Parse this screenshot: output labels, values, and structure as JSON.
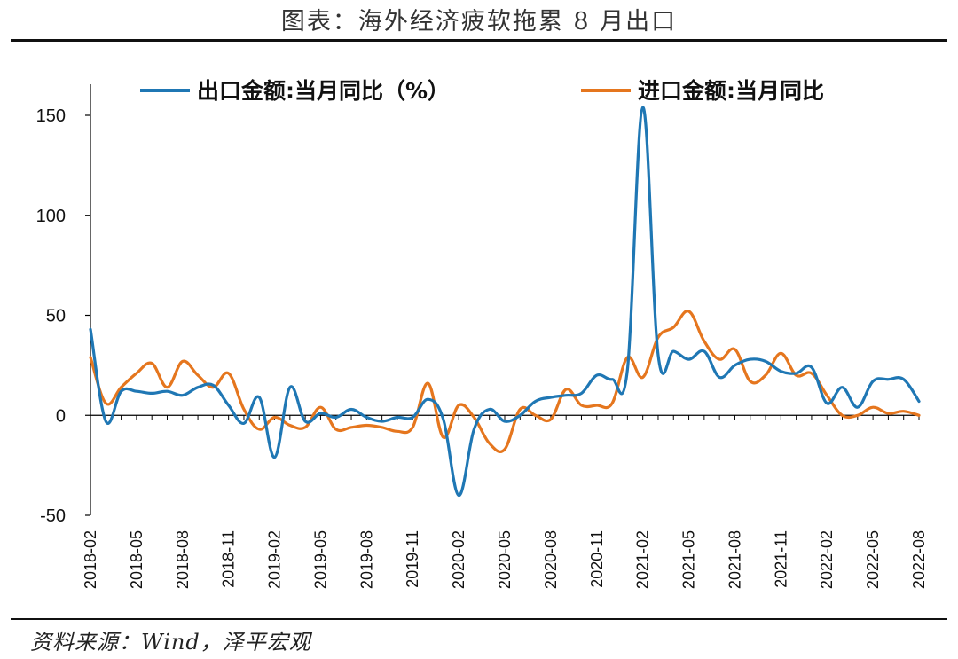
{
  "title": "图表：海外经济疲软拖累 8 月出口",
  "source": "资料来源：Wind，泽平宏观",
  "chart_data": {
    "type": "line",
    "legend_position": "top",
    "grid": false,
    "ylim": [
      -50,
      160
    ],
    "yticks": [
      -50,
      0,
      50,
      100,
      150
    ],
    "x_tick_labels": [
      "2018-02",
      "2018-05",
      "2018-08",
      "2018-11",
      "2019-02",
      "2019-05",
      "2019-08",
      "2019-11",
      "2020-02",
      "2020-05",
      "2020-08",
      "2020-11",
      "2021-02",
      "2021-05",
      "2021-08",
      "2021-11",
      "2022-02",
      "2022-05",
      "2022-08"
    ],
    "x": [
      "2018-02",
      "2018-03",
      "2018-04",
      "2018-05",
      "2018-06",
      "2018-07",
      "2018-08",
      "2018-09",
      "2018-10",
      "2018-11",
      "2018-12",
      "2019-01",
      "2019-02",
      "2019-03",
      "2019-04",
      "2019-05",
      "2019-06",
      "2019-07",
      "2019-08",
      "2019-09",
      "2019-10",
      "2019-11",
      "2019-12",
      "2020-01",
      "2020-02",
      "2020-03",
      "2020-04",
      "2020-05",
      "2020-06",
      "2020-07",
      "2020-08",
      "2020-09",
      "2020-10",
      "2020-11",
      "2020-12",
      "2021-01",
      "2021-02",
      "2021-03",
      "2021-04",
      "2021-05",
      "2021-06",
      "2021-07",
      "2021-08",
      "2021-09",
      "2021-10",
      "2021-11",
      "2021-12",
      "2022-01",
      "2022-02",
      "2022-03",
      "2022-04",
      "2022-05",
      "2022-06",
      "2022-07",
      "2022-08"
    ],
    "series": [
      {
        "name": "出口金额:当月同比（%）",
        "color": "#1F77B4",
        "values": [
          43,
          -3,
          12,
          12,
          11,
          12,
          10,
          14,
          15,
          5,
          -4,
          9,
          -21,
          14,
          -3,
          1,
          -1,
          3,
          -1,
          -3,
          -1,
          -1,
          8,
          -2,
          -40,
          -7,
          3,
          -3,
          0,
          7,
          9,
          10,
          11,
          20,
          18,
          23,
          154,
          30,
          32,
          28,
          32,
          19,
          25,
          28,
          27,
          22,
          21,
          24,
          6,
          14,
          4,
          17,
          18,
          18,
          7
        ]
      },
      {
        "name": "进口金额:当月同比",
        "color": "#E5761E",
        "values": [
          29,
          6,
          14,
          21,
          26,
          14,
          27,
          20,
          14,
          21,
          3,
          -7,
          -1,
          -5,
          -6,
          4,
          -7,
          -6,
          -5,
          -6,
          -8,
          -6,
          16,
          -11,
          5,
          -1,
          -14,
          -17,
          3,
          0,
          -2,
          13,
          5,
          5,
          6,
          29,
          19,
          39,
          44,
          52,
          37,
          28,
          33,
          17,
          20,
          31,
          20,
          21,
          10,
          0,
          0,
          4,
          1,
          2,
          0
        ]
      }
    ]
  }
}
